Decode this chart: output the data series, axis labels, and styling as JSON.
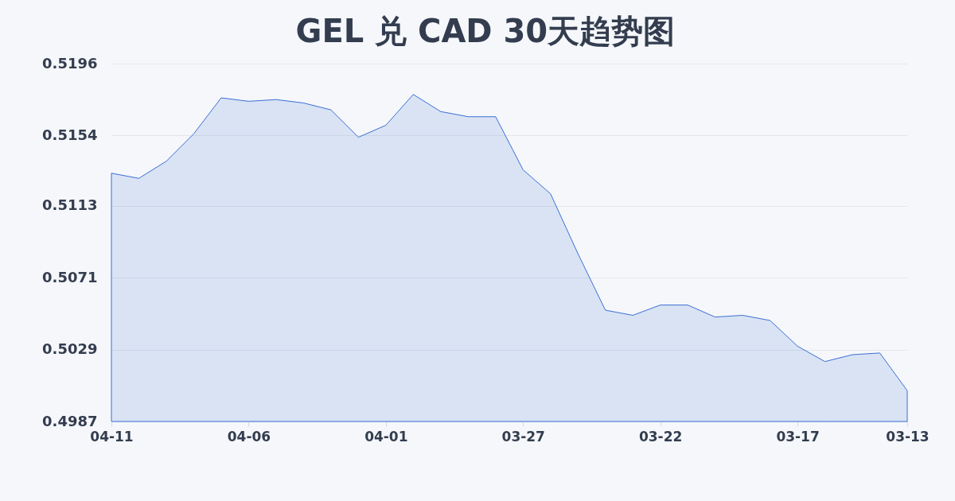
{
  "chart_data": {
    "type": "area",
    "title": "GEL 兑 CAD 30天趋势图",
    "categories": [
      "04-11",
      null,
      null,
      null,
      null,
      "04-06",
      null,
      null,
      null,
      null,
      "04-01",
      null,
      null,
      null,
      null,
      "03-27",
      null,
      null,
      null,
      null,
      "03-22",
      null,
      null,
      null,
      null,
      "03-17",
      null,
      null,
      null,
      "03-13"
    ],
    "values": [
      0.5132,
      0.5129,
      0.5139,
      0.5155,
      0.5176,
      0.5174,
      0.5175,
      0.5173,
      0.5169,
      0.5153,
      0.516,
      0.5178,
      0.5168,
      0.5165,
      0.5165,
      0.5134,
      0.512,
      0.5085,
      0.5052,
      0.5049,
      0.5055,
      0.5055,
      0.5048,
      0.5049,
      0.5046,
      0.5031,
      0.5022,
      0.5026,
      0.5027,
      0.5005
    ],
    "color": "#3b6fd4",
    "ylim": [
      0.4987,
      0.5196
    ],
    "yticks": [
      0.4987,
      0.5029,
      0.5071,
      0.5113,
      0.5154,
      0.5196
    ],
    "grid": "y"
  }
}
